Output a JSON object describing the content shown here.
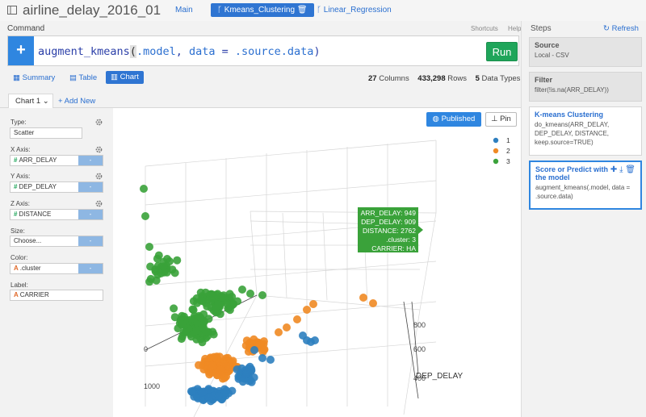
{
  "topbar": {
    "project_title": "airline_delay_2016_01",
    "tabs": [
      "Main",
      "Kmeans_Clustering",
      "Linear_Regression"
    ]
  },
  "command": {
    "label": "Command",
    "shortcuts": "Shortcuts",
    "help": "Help",
    "plus": "+",
    "fn": "augment_kmeans",
    "paren_open": "(",
    "arg1": ".model",
    "sep": ", ",
    "arg2_name": "data",
    "eq": " = ",
    "arg2_value": ".source.data",
    "paren_close": ")",
    "run_label": "Run"
  },
  "views": {
    "summary": "Summary",
    "table": "Table",
    "chart": "Chart"
  },
  "stats": {
    "columns_count": "27",
    "columns_label": "Columns",
    "rows_count": "433,298",
    "rows_label": "Rows",
    "types_count": "5",
    "types_label": "Data Types"
  },
  "chart_tabs": {
    "tab1": "Chart 1",
    "add_new": "+ Add New"
  },
  "config": {
    "type_label": "Type:",
    "type_value": "Scatter",
    "x_label": "X Axis:",
    "x_value": "ARR_DELAY",
    "y_label": "Y Axis:",
    "y_value": "DEP_DELAY",
    "z_label": "Z Axis:",
    "z_value": "DISTANCE",
    "size_label": "Size:",
    "size_value": "Choose...",
    "color_label": "Color:",
    "color_value": ".cluster",
    "label_label": "Label:",
    "label_value": "CARRIER",
    "btn_dash": "-",
    "hash": "#",
    "char": "A"
  },
  "chart_buttons": {
    "published": "Published",
    "pin": "Pin"
  },
  "steps": {
    "title": "Steps",
    "refresh": "Refresh",
    "items": [
      {
        "title": "Source",
        "desc": "Local - CSV"
      },
      {
        "title": "Filter",
        "desc": "filter(!is.na(ARR_DELAY))"
      },
      {
        "title": "K-means Clustering",
        "desc": "do_kmeans(ARR_DELAY, DEP_DELAY, DISTANCE, keep.source=TRUE)"
      },
      {
        "title": "Score or Predict with the model",
        "desc": "augment_kmeans(.model, data = .source.data)"
      }
    ]
  },
  "chart_data": {
    "type": "scatter",
    "subtype": "3d-scatter",
    "x_axis": "ARR_DELAY",
    "y_axis": "DEP_DELAY",
    "z_axis": "DISTANCE",
    "color_by": ".cluster",
    "label_by": "CARRIER",
    "legend": [
      "1",
      "2",
      "3"
    ],
    "legend_position": "top-right",
    "colors": {
      "1": "#2e7fbf",
      "2": "#f08a24",
      "3": "#3aa23a"
    },
    "visible_tick_labels": [
      "800",
      "600",
      "400",
      "1000",
      "0"
    ],
    "visible_axis_title": "DEP_DELAY",
    "tooltip": {
      "line1": "ARR_DELAY: 949",
      "line2": "DEP_DELAY: 909",
      "line3": "DISTANCE: 2762",
      "line4": ".cluster: 3",
      "line5": "CARRIER: HA"
    }
  }
}
